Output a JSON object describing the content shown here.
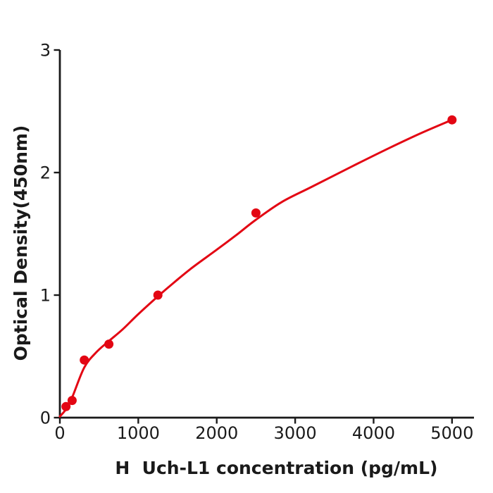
{
  "figure": {
    "kind": "ELISA standard curve plot",
    "background": "#ffffff"
  },
  "chart_data": {
    "type": "scatter",
    "title": "",
    "xlabel": "H  Uch-L1 concentration (pg/mL)",
    "ylabel": "Optical Density(450nm)",
    "points": {
      "x": [
        78,
        156,
        312,
        625,
        1250,
        2500,
        5000
      ],
      "y": [
        0.09,
        0.14,
        0.47,
        0.6,
        1.0,
        1.67,
        2.43
      ]
    },
    "fit_curve": {
      "description": "smooth concave fit through data, drawn from origin to the 5000 pg/mL point",
      "anchors_x": [
        0,
        80,
        160,
        312,
        467,
        625,
        800,
        1000,
        1250,
        1450,
        1700,
        2000,
        2250,
        2500,
        2830,
        3200,
        3725,
        4200,
        4600,
        5000
      ],
      "anchors_y": [
        0.01,
        0.07,
        0.17,
        0.41,
        0.535,
        0.625,
        0.72,
        0.845,
        0.99,
        1.1,
        1.23,
        1.37,
        1.49,
        1.615,
        1.76,
        1.88,
        2.05,
        2.2,
        2.32,
        2.43
      ]
    },
    "xticks": [
      0,
      1000,
      2000,
      3000,
      4000,
      5000
    ],
    "yticks": [
      0,
      1,
      2,
      3
    ],
    "xlim": [
      0,
      5280
    ],
    "ylim": [
      0,
      3
    ],
    "grid": false,
    "legend": null,
    "spines": "left and bottom only",
    "colors": {
      "curve": "#e30613",
      "marker": "#e30613",
      "axis": "#1a1a1a",
      "text": "#1a1a1a",
      "background": "#ffffff"
    }
  }
}
